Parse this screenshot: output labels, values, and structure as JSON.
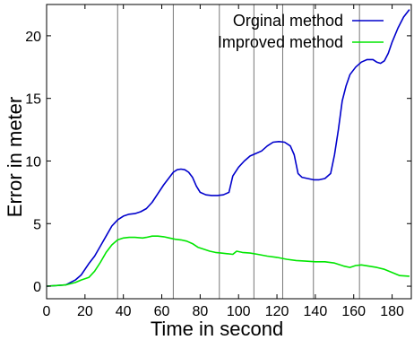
{
  "chart_data": {
    "type": "line",
    "title": "",
    "xlabel": "Time in second",
    "ylabel": "Error in meter",
    "xlim": [
      0,
      190
    ],
    "ylim": [
      -1,
      22.5
    ],
    "xticks": [
      0,
      20,
      40,
      60,
      80,
      100,
      120,
      140,
      160,
      180
    ],
    "yticks": [
      0,
      5,
      10,
      15,
      20
    ],
    "grid": false,
    "legend_position": "top-right",
    "vertical_markers": [
      37,
      66,
      90,
      108,
      123,
      139,
      163
    ],
    "series": [
      {
        "name": "Orginal method",
        "color": "#0000cc",
        "points": [
          [
            0,
            0
          ],
          [
            5,
            0.05
          ],
          [
            10,
            0.1
          ],
          [
            15,
            0.5
          ],
          [
            18,
            0.9
          ],
          [
            22,
            1.8
          ],
          [
            25,
            2.4
          ],
          [
            28,
            3.2
          ],
          [
            31,
            4.0
          ],
          [
            34,
            4.8
          ],
          [
            37,
            5.3
          ],
          [
            40,
            5.6
          ],
          [
            43,
            5.75
          ],
          [
            46,
            5.8
          ],
          [
            49,
            5.95
          ],
          [
            52,
            6.2
          ],
          [
            55,
            6.7
          ],
          [
            58,
            7.4
          ],
          [
            61,
            8.1
          ],
          [
            64,
            8.7
          ],
          [
            66,
            9.1
          ],
          [
            68,
            9.3
          ],
          [
            70,
            9.35
          ],
          [
            72,
            9.3
          ],
          [
            74,
            9.1
          ],
          [
            76,
            8.7
          ],
          [
            78,
            8.0
          ],
          [
            80,
            7.5
          ],
          [
            83,
            7.3
          ],
          [
            86,
            7.25
          ],
          [
            89,
            7.25
          ],
          [
            92,
            7.3
          ],
          [
            95,
            7.5
          ],
          [
            97,
            8.8
          ],
          [
            100,
            9.5
          ],
          [
            103,
            10.0
          ],
          [
            106,
            10.4
          ],
          [
            109,
            10.6
          ],
          [
            112,
            10.8
          ],
          [
            115,
            11.2
          ],
          [
            118,
            11.5
          ],
          [
            121,
            11.55
          ],
          [
            124,
            11.5
          ],
          [
            127,
            11.2
          ],
          [
            129,
            10.5
          ],
          [
            131,
            9.0
          ],
          [
            133,
            8.7
          ],
          [
            136,
            8.6
          ],
          [
            139,
            8.5
          ],
          [
            142,
            8.5
          ],
          [
            145,
            8.6
          ],
          [
            148,
            9.0
          ],
          [
            150,
            10.5
          ],
          [
            152,
            12.5
          ],
          [
            154,
            14.8
          ],
          [
            156,
            16.0
          ],
          [
            158,
            16.9
          ],
          [
            161,
            17.5
          ],
          [
            164,
            17.9
          ],
          [
            167,
            18.1
          ],
          [
            170,
            18.1
          ],
          [
            172,
            17.9
          ],
          [
            174,
            17.8
          ],
          [
            176,
            18.0
          ],
          [
            178,
            18.6
          ],
          [
            180,
            19.5
          ],
          [
            183,
            20.6
          ],
          [
            186,
            21.5
          ],
          [
            189,
            22.1
          ]
        ]
      },
      {
        "name": "Improved method",
        "color": "#00e600",
        "points": [
          [
            0,
            0
          ],
          [
            5,
            0.05
          ],
          [
            10,
            0.1
          ],
          [
            15,
            0.3
          ],
          [
            18,
            0.5
          ],
          [
            22,
            0.7
          ],
          [
            25,
            1.2
          ],
          [
            28,
            1.9
          ],
          [
            31,
            2.7
          ],
          [
            34,
            3.3
          ],
          [
            37,
            3.7
          ],
          [
            40,
            3.85
          ],
          [
            43,
            3.9
          ],
          [
            46,
            3.9
          ],
          [
            50,
            3.85
          ],
          [
            52,
            3.9
          ],
          [
            55,
            4.0
          ],
          [
            58,
            4.0
          ],
          [
            61,
            3.95
          ],
          [
            64,
            3.85
          ],
          [
            67,
            3.75
          ],
          [
            70,
            3.7
          ],
          [
            73,
            3.6
          ],
          [
            76,
            3.4
          ],
          [
            79,
            3.1
          ],
          [
            82,
            2.95
          ],
          [
            85,
            2.8
          ],
          [
            88,
            2.7
          ],
          [
            91,
            2.65
          ],
          [
            94,
            2.6
          ],
          [
            97,
            2.55
          ],
          [
            99,
            2.8
          ],
          [
            102,
            2.7
          ],
          [
            106,
            2.65
          ],
          [
            110,
            2.55
          ],
          [
            115,
            2.4
          ],
          [
            120,
            2.3
          ],
          [
            125,
            2.15
          ],
          [
            130,
            2.05
          ],
          [
            135,
            2.0
          ],
          [
            140,
            1.95
          ],
          [
            145,
            1.95
          ],
          [
            150,
            1.85
          ],
          [
            155,
            1.6
          ],
          [
            158,
            1.5
          ],
          [
            161,
            1.65
          ],
          [
            164,
            1.7
          ],
          [
            168,
            1.6
          ],
          [
            172,
            1.5
          ],
          [
            176,
            1.35
          ],
          [
            180,
            1.1
          ],
          [
            184,
            0.85
          ],
          [
            189,
            0.8
          ]
        ]
      }
    ]
  }
}
